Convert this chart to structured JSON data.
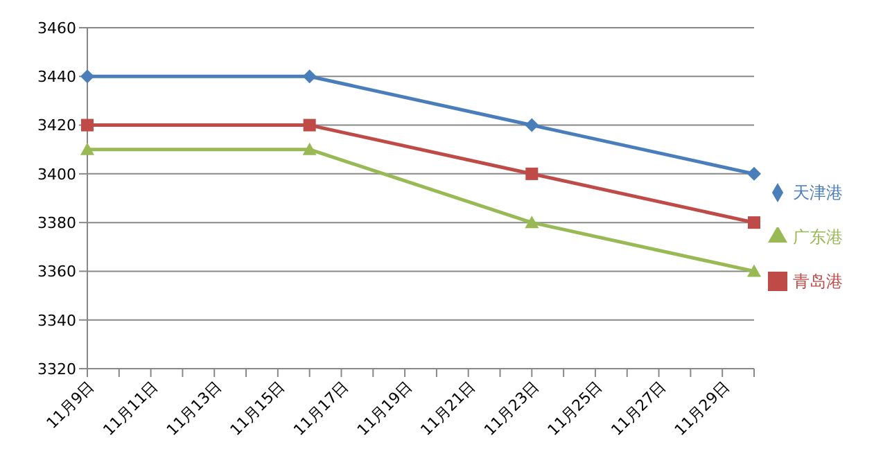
{
  "chart_data": {
    "type": "line",
    "categories": [
      "11月9日",
      null,
      "11月11日",
      null,
      "11月13日",
      null,
      "11月15日",
      null,
      "11月17日",
      null,
      "11月19日",
      null,
      "11月21日",
      null,
      "11月23日",
      null,
      "11月25日",
      null,
      "11月27日",
      null,
      "11月29日",
      null
    ],
    "series": [
      {
        "name": "天津港",
        "color": "#4a7ebb",
        "marker": "diamond",
        "values": [
          3440,
          null,
          null,
          null,
          null,
          null,
          null,
          3440,
          null,
          null,
          null,
          null,
          null,
          null,
          3420,
          null,
          null,
          null,
          null,
          null,
          null,
          3400
        ]
      },
      {
        "name": "青岛港",
        "color": "#be4b48",
        "marker": "square",
        "values": [
          3420,
          null,
          null,
          null,
          null,
          null,
          null,
          3420,
          null,
          null,
          null,
          null,
          null,
          null,
          3400,
          null,
          null,
          null,
          null,
          null,
          null,
          3380
        ]
      },
      {
        "name": "广东港",
        "color": "#98b954",
        "marker": "triangle",
        "values": [
          3410,
          null,
          null,
          null,
          null,
          null,
          null,
          3410,
          null,
          null,
          null,
          null,
          null,
          null,
          3380,
          null,
          null,
          null,
          null,
          null,
          null,
          3360
        ]
      }
    ],
    "ylim": [
      3320,
      3460
    ],
    "yticks": [
      3320,
      3340,
      3360,
      3380,
      3400,
      3420,
      3440,
      3460
    ],
    "grid": "y",
    "legend": "right",
    "line_style": "solid"
  }
}
